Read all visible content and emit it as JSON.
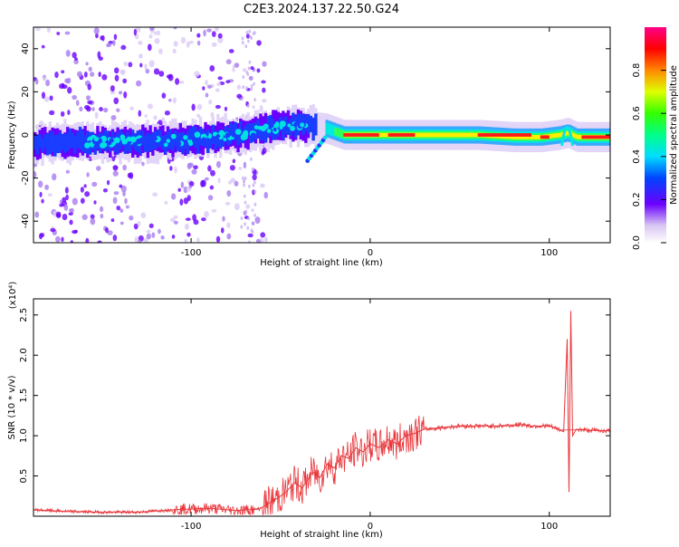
{
  "title": "C2E3.2024.137.22.50.G24",
  "chart_data": [
    {
      "type": "heatmap",
      "xlabel": "Height of straight line (km)",
      "ylabel": "Frequency (Hz)",
      "xlim": [
        -188,
        134
      ],
      "ylim": [
        -50,
        50
      ],
      "x_ticks": [
        -100,
        0,
        100
      ],
      "y_ticks": [
        -40,
        -20,
        0,
        20,
        40
      ],
      "colorbar": {
        "label": "Normalized spectral amplitude",
        "range": [
          0.0,
          1.0
        ],
        "ticks": [
          0.0,
          0.2,
          0.4,
          0.6,
          0.8
        ]
      },
      "ridge": {
        "x": [
          -188,
          -160,
          -140,
          -120,
          -100,
          -80,
          -60,
          -45,
          -35,
          -25,
          -15,
          0,
          20,
          40,
          60,
          80,
          95,
          105,
          110,
          115,
          134
        ],
        "y": [
          -4,
          -3,
          -3,
          -3,
          -2,
          -0.5,
          2,
          5,
          4,
          3,
          0,
          0,
          0,
          0,
          0,
          -1,
          -1,
          0,
          1,
          -1,
          -1
        ]
      }
    },
    {
      "type": "line",
      "xlabel": "Height of straight line (km)",
      "ylabel": "SNR (10 * v/v)",
      "y_multiplier": "(x10⁴)",
      "xlim": [
        -188,
        134
      ],
      "ylim": [
        0,
        2.7
      ],
      "x_ticks": [
        -100,
        0,
        100
      ],
      "y_ticks": [
        0.5,
        1.0,
        1.5,
        2.0,
        2.5
      ],
      "series": [
        {
          "color": "#e8353a",
          "x": [
            -188,
            -170,
            -150,
            -130,
            -110,
            -90,
            -75,
            -62,
            -55,
            -48,
            -42,
            -38,
            -32,
            -28,
            -24,
            -20,
            -16,
            -12,
            -8,
            -4,
            0,
            5,
            10,
            15,
            20,
            25,
            30,
            40,
            50,
            60,
            70,
            80,
            85,
            90,
            100,
            105,
            108,
            110,
            111,
            112,
            113,
            115,
            120,
            134
          ],
          "y": [
            0.08,
            0.06,
            0.05,
            0.05,
            0.08,
            0.1,
            0.07,
            0.09,
            0.18,
            0.28,
            0.42,
            0.35,
            0.55,
            0.48,
            0.65,
            0.6,
            0.75,
            0.72,
            0.85,
            0.8,
            0.9,
            0.85,
            0.95,
            0.9,
            1.0,
            1.03,
            1.08,
            1.1,
            1.12,
            1.12,
            1.12,
            1.13,
            1.14,
            1.12,
            1.12,
            1.08,
            1.05,
            2.2,
            0.3,
            2.55,
            1.0,
            1.08,
            1.07,
            1.06
          ]
        }
      ]
    }
  ]
}
